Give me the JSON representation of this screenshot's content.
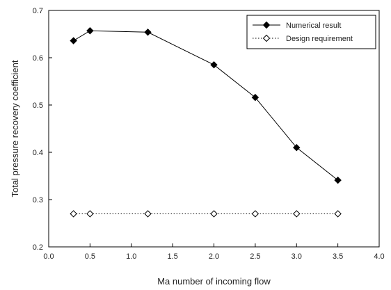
{
  "chart_data": {
    "type": "line",
    "xlabel": "Ma number of incoming flow",
    "ylabel": "Total pressure recovery coefficient",
    "xlim": [
      0.0,
      4.0
    ],
    "ylim": [
      0.2,
      0.7
    ],
    "x_ticks": [
      "0.0",
      "0.5",
      "1.0",
      "1.5",
      "2.0",
      "2.5",
      "3.0",
      "3.5",
      "4.0"
    ],
    "y_ticks": [
      "0.2",
      "0.3",
      "0.4",
      "0.5",
      "0.6",
      "0.7"
    ],
    "grid": false,
    "legend_position": "top-right",
    "series": [
      {
        "name": "Numerical result",
        "line_style": "solid",
        "marker": "filled-diamond",
        "color": "#000000",
        "x": [
          0.3,
          0.5,
          1.2,
          2.0,
          2.5,
          3.0,
          3.5
        ],
        "y": [
          0.636,
          0.657,
          0.654,
          0.585,
          0.516,
          0.41,
          0.341
        ]
      },
      {
        "name": "Design requirement",
        "line_style": "dotted",
        "marker": "open-diamond",
        "color": "#000000",
        "x": [
          0.3,
          0.5,
          1.2,
          2.0,
          2.5,
          3.0,
          3.5
        ],
        "y": [
          0.27,
          0.27,
          0.27,
          0.27,
          0.27,
          0.27,
          0.27
        ]
      }
    ]
  }
}
